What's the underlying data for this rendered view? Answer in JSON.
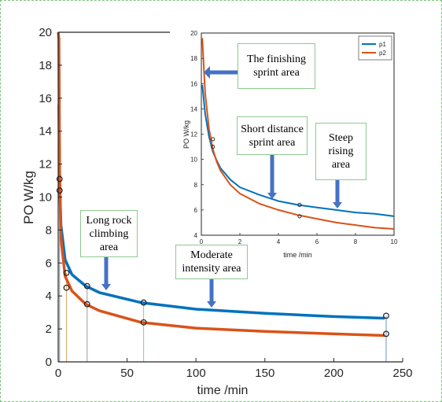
{
  "chart_data": [
    {
      "type": "line",
      "role": "main",
      "xlabel": "time /min",
      "ylabel": "PO W/kg",
      "xlim": [
        0,
        250
      ],
      "ylim": [
        0,
        20
      ],
      "xticks": [
        0,
        50,
        100,
        150,
        200,
        250
      ],
      "yticks": [
        0,
        2,
        4,
        6,
        8,
        10,
        12,
        14,
        16,
        18,
        20
      ],
      "grid": false,
      "series": [
        {
          "color": "#0072bd",
          "x": [
            0.5,
            1,
            2,
            5,
            10,
            20,
            30,
            60,
            100,
            150,
            200,
            237
          ],
          "y": [
            15.6,
            11.0,
            8.3,
            6.2,
            5.3,
            4.6,
            4.2,
            3.6,
            3.2,
            2.95,
            2.75,
            2.65
          ]
        },
        {
          "color": "#d95319",
          "x": [
            0.5,
            1,
            2,
            5,
            10,
            20,
            30,
            60,
            100,
            150,
            200,
            237
          ],
          "y": [
            19.6,
            11.6,
            7.5,
            5.2,
            4.3,
            3.5,
            3.1,
            2.4,
            2.05,
            1.85,
            1.7,
            1.6
          ]
        }
      ],
      "markers": [
        {
          "x": 1,
          "y": 11.1
        },
        {
          "x": 1,
          "y": 10.4
        },
        {
          "x": 6,
          "y": 5.4
        },
        {
          "x": 6,
          "y": 4.5
        },
        {
          "x": 21,
          "y": 4.6
        },
        {
          "x": 21,
          "y": 3.5
        },
        {
          "x": 62,
          "y": 3.6
        },
        {
          "x": 62,
          "y": 2.4
        },
        {
          "x": 238,
          "y": 2.8
        },
        {
          "x": 238,
          "y": 1.7
        }
      ],
      "vlines": [
        {
          "x": 1,
          "color": "#6a8fd0"
        },
        {
          "x": 6,
          "color": "#e8a86a"
        },
        {
          "x": 21,
          "color": "#9c9c9c"
        },
        {
          "x": 62,
          "color": "#8fc98f"
        },
        {
          "x": 238,
          "color": "#6a8fd0"
        }
      ],
      "annotations": [
        {
          "text": "Long rock\nclimbing\narea"
        },
        {
          "text": "Moderate\nintensity area"
        }
      ]
    },
    {
      "type": "line",
      "role": "inset",
      "xlabel": "time /min",
      "ylabel": "PO W/kg",
      "xlim": [
        0,
        10
      ],
      "ylim": [
        4,
        20
      ],
      "xticks": [
        0,
        2,
        4,
        6,
        8,
        10
      ],
      "yticks": [
        4,
        6,
        8,
        10,
        12,
        14,
        16,
        18,
        20
      ],
      "grid": false,
      "legend": "top-right",
      "series": [
        {
          "name": "p1",
          "color": "#0072bd",
          "x": [
            0.05,
            0.2,
            0.4,
            0.6,
            0.8,
            1.0,
            1.5,
            2,
            3,
            4,
            5,
            6,
            7,
            8,
            9,
            10
          ],
          "y": [
            15.9,
            13.6,
            11.8,
            10.6,
            9.9,
            9.3,
            8.4,
            7.8,
            7.2,
            6.7,
            6.4,
            6.2,
            6.0,
            5.8,
            5.7,
            5.5
          ]
        },
        {
          "name": "p2",
          "color": "#d95319",
          "x": [
            0.05,
            0.2,
            0.4,
            0.6,
            0.8,
            1.0,
            1.5,
            2,
            3,
            4,
            5,
            6,
            7,
            8,
            9,
            10
          ],
          "y": [
            19.6,
            15.2,
            12.4,
            10.8,
            9.8,
            9.1,
            8.0,
            7.3,
            6.5,
            6.0,
            5.6,
            5.3,
            5.0,
            4.8,
            4.6,
            4.5
          ]
        }
      ],
      "markers": [
        {
          "x": 0.6,
          "y": 11.6
        },
        {
          "x": 0.6,
          "y": 11.0
        },
        {
          "x": 5.1,
          "y": 6.4
        },
        {
          "x": 5.1,
          "y": 5.5
        }
      ],
      "annotations": [
        {
          "text": "The finishing\nsprint area"
        },
        {
          "text": "Short distance\nsprint area"
        },
        {
          "text": "Steep\nrising\narea"
        }
      ]
    }
  ]
}
